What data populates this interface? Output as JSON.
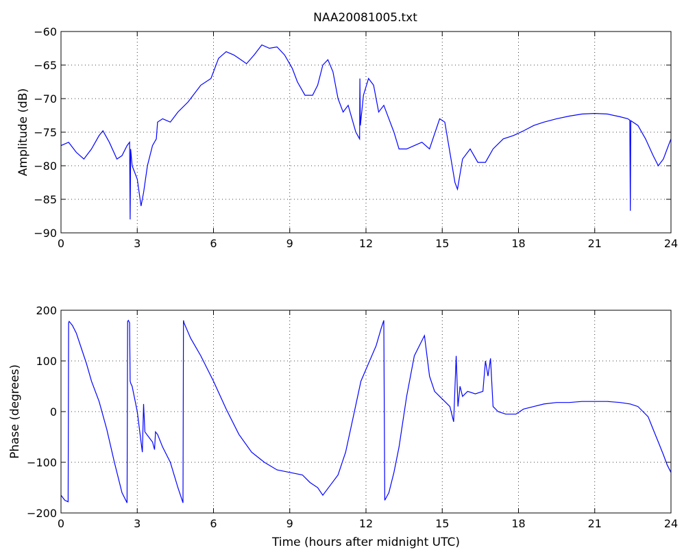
{
  "chart_data": [
    {
      "type": "line",
      "title": "NAA20081005.txt",
      "xlabel": "",
      "ylabel": "Amplitude (dB)",
      "xlim": [
        0,
        24
      ],
      "ylim": [
        -90,
        -60
      ],
      "xticks": [
        0,
        3,
        6,
        9,
        12,
        15,
        18,
        21,
        24
      ],
      "yticks": [
        -90,
        -85,
        -80,
        -75,
        -70,
        -65,
        -60
      ],
      "xtick_labels": [
        "0",
        "3",
        "6",
        "9",
        "12",
        "15",
        "18",
        "21",
        "24"
      ],
      "ytick_labels": [
        "−90",
        "−85",
        "−80",
        "−75",
        "−70",
        "−65",
        "−60"
      ],
      "grid": true,
      "line_color": "#0000ff",
      "series": [
        {
          "x": [
            0,
            0.3,
            0.6,
            0.9,
            1.2,
            1.5,
            1.65,
            1.9,
            2.2,
            2.4,
            2.6,
            2.7,
            2.72,
            2.74,
            2.8,
            3.0,
            3.15,
            3.25,
            3.4,
            3.6,
            3.75,
            3.8,
            4.0,
            4.3,
            4.6,
            5.0,
            5.5,
            5.9,
            6.2,
            6.5,
            6.8,
            7.0,
            7.3,
            7.6,
            7.9,
            8.2,
            8.5,
            8.8,
            9.1,
            9.3,
            9.6,
            9.9,
            10.1,
            10.3,
            10.5,
            10.7,
            10.9,
            11.1,
            11.3,
            11.6,
            11.75,
            11.76,
            11.78,
            11.9,
            12.1,
            12.3,
            12.5,
            12.7,
            12.9,
            13.1,
            13.3,
            13.6,
            13.9,
            14.2,
            14.5,
            14.9,
            15.1,
            15.3,
            15.5,
            15.6,
            15.8,
            16.1,
            16.4,
            16.7,
            17.0,
            17.4,
            17.8,
            18.2,
            18.6,
            19.0,
            19.5,
            20.0,
            20.5,
            21.0,
            21.5,
            22.0,
            22.3,
            22.38,
            22.4,
            22.42,
            22.7,
            23.0,
            23.3,
            23.5,
            23.7,
            23.85,
            24.0
          ],
          "y": [
            -77,
            -76.5,
            -78,
            -79,
            -77.5,
            -75.5,
            -74.8,
            -76.5,
            -79,
            -78.5,
            -77,
            -76.5,
            -88,
            -77.5,
            -80,
            -82,
            -86,
            -84,
            -80,
            -77,
            -76,
            -73.5,
            -73,
            -73.5,
            -72,
            -70.5,
            -68,
            -67,
            -64,
            -63,
            -63.5,
            -64,
            -64.8,
            -63.5,
            -62,
            -62.5,
            -62.3,
            -63.5,
            -65.5,
            -67.5,
            -69.5,
            -69.5,
            -68,
            -65,
            -64.2,
            -66,
            -70,
            -72,
            -71,
            -75,
            -76,
            -67,
            -74,
            -69.5,
            -67,
            -68,
            -72,
            -71,
            -73,
            -75,
            -77.5,
            -77.5,
            -77,
            -76.5,
            -77.5,
            -73,
            -73.5,
            -78,
            -82.5,
            -83.5,
            -79,
            -77.5,
            -79.5,
            -79.5,
            -77.5,
            -76,
            -75.5,
            -74.8,
            -74,
            -73.5,
            -73,
            -72.6,
            -72.3,
            -72.2,
            -72.3,
            -72.7,
            -73,
            -73.2,
            -86.7,
            -73.3,
            -74,
            -76,
            -78.5,
            -80,
            -79,
            -77.5,
            -76
          ]
        }
      ]
    },
    {
      "type": "line",
      "title": "",
      "xlabel": "Time (hours after midnight UTC)",
      "ylabel": "Phase (degrees)",
      "xlim": [
        0,
        24
      ],
      "ylim": [
        -200,
        200
      ],
      "xticks": [
        0,
        3,
        6,
        9,
        12,
        15,
        18,
        21,
        24
      ],
      "yticks": [
        -200,
        -100,
        0,
        100,
        200
      ],
      "xtick_labels": [
        "0",
        "3",
        "6",
        "9",
        "12",
        "15",
        "18",
        "21",
        "24"
      ],
      "ytick_labels": [
        "−200",
        "−100",
        "0",
        "100",
        "200"
      ],
      "grid": true,
      "line_color": "#0000ff",
      "series": [
        {
          "x": [
            0,
            0.15,
            0.28,
            0.3,
            0.32,
            0.45,
            0.6,
            0.8,
            1.0,
            1.2,
            1.5,
            1.8,
            2.1,
            2.4,
            2.6,
            2.62,
            2.65,
            2.7,
            2.72,
            2.75,
            2.8,
            3.0,
            3.15,
            3.2,
            3.25,
            3.3,
            3.45,
            3.6,
            3.68,
            3.72,
            3.8,
            4.0,
            4.3,
            4.6,
            4.8,
            4.82,
            4.84,
            5.1,
            5.5,
            6.0,
            6.5,
            7.0,
            7.5,
            8.0,
            8.5,
            9.0,
            9.5,
            9.8,
            10.1,
            10.3,
            10.6,
            10.9,
            11.2,
            11.5,
            11.8,
            12.1,
            12.4,
            12.6,
            12.7,
            12.72,
            12.74,
            12.9,
            13.1,
            13.3,
            13.6,
            13.9,
            14.2,
            14.3,
            14.5,
            14.7,
            14.9,
            15.1,
            15.3,
            15.45,
            15.55,
            15.62,
            15.7,
            15.8,
            16.0,
            16.3,
            16.6,
            16.7,
            16.8,
            16.9,
            17.0,
            17.2,
            17.5,
            17.9,
            18.2,
            18.6,
            19.0,
            19.5,
            20.0,
            20.5,
            21.0,
            21.5,
            22.0,
            22.4,
            22.7,
            22.9,
            23.1,
            23.3,
            23.5,
            23.7,
            23.85,
            24.0
          ],
          "y": [
            -165,
            -175,
            -178,
            175,
            178,
            170,
            155,
            125,
            95,
            60,
            20,
            -35,
            -100,
            -160,
            -180,
            178,
            180,
            175,
            60,
            55,
            50,
            0,
            -60,
            -80,
            15,
            -40,
            -50,
            -60,
            -75,
            -40,
            -45,
            -70,
            -100,
            -150,
            -180,
            180,
            175,
            145,
            110,
            60,
            5,
            -45,
            -80,
            -100,
            -115,
            -120,
            -125,
            -140,
            -150,
            -165,
            -145,
            -125,
            -80,
            -10,
            60,
            95,
            130,
            165,
            180,
            0,
            -175,
            -160,
            -120,
            -70,
            30,
            110,
            140,
            150,
            70,
            40,
            30,
            20,
            10,
            -20,
            110,
            10,
            50,
            30,
            40,
            35,
            40,
            100,
            70,
            105,
            10,
            0,
            -5,
            -5,
            5,
            10,
            15,
            18,
            18,
            20,
            20,
            20,
            18,
            15,
            10,
            0,
            -10,
            -35,
            -60,
            -85,
            -105,
            -120
          ]
        }
      ]
    }
  ]
}
